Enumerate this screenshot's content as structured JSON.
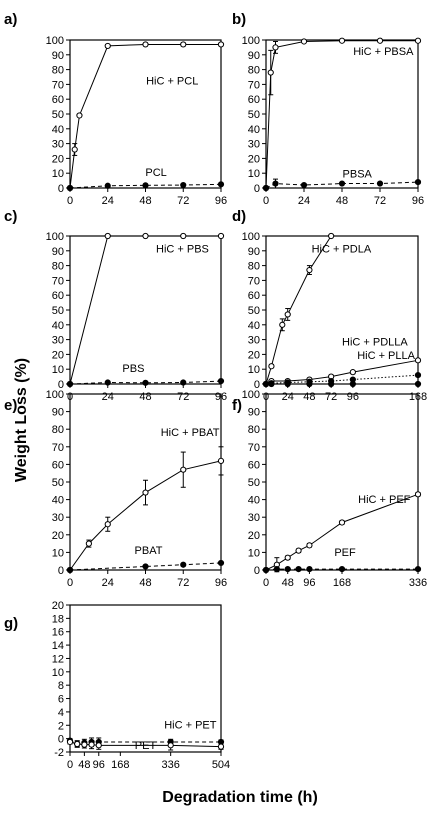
{
  "figure": {
    "ylabel": "Weight Loss (%)",
    "xlabel": "Degradation time (h)"
  },
  "chart_data": [
    {
      "panel": "a)",
      "type": "line",
      "xticks": [
        0,
        24,
        48,
        72,
        96
      ],
      "xlim": [
        0,
        96
      ],
      "yticks": [
        0,
        10,
        20,
        30,
        40,
        50,
        60,
        70,
        80,
        90,
        100
      ],
      "ylim": [
        0,
        100
      ],
      "series": [
        {
          "name": "HiC + PCL",
          "line": "solid",
          "marker": "open",
          "x": [
            0,
            3,
            6,
            24,
            48,
            72,
            96
          ],
          "y": [
            0,
            26,
            49,
            96,
            97,
            97,
            97
          ],
          "err": [
            0,
            4,
            1,
            1,
            1,
            1,
            1
          ]
        },
        {
          "name": "PCL",
          "line": "dashed",
          "marker": "filled",
          "x": [
            0,
            24,
            48,
            72,
            96
          ],
          "y": [
            0,
            1.5,
            1.8,
            2,
            2.5
          ],
          "err": [
            0,
            0.5,
            0.5,
            0.5,
            0.5
          ]
        }
      ]
    },
    {
      "panel": "b)",
      "type": "line",
      "xticks": [
        0,
        24,
        48,
        72,
        96
      ],
      "xlim": [
        0,
        96
      ],
      "yticks": [
        0,
        10,
        20,
        30,
        40,
        50,
        60,
        70,
        80,
        90,
        100
      ],
      "ylim": [
        0,
        100
      ],
      "series": [
        {
          "name": "HiC + PBSA",
          "line": "solid",
          "marker": "open",
          "x": [
            0,
            3,
            6,
            24,
            48,
            72,
            96
          ],
          "y": [
            0,
            78,
            95,
            99,
            99.5,
            99.5,
            99.5
          ],
          "err": [
            0,
            15,
            4,
            0.5,
            0.5,
            0.5,
            0.5
          ]
        },
        {
          "name": "PBSA",
          "line": "dashed",
          "marker": "filled",
          "x": [
            0,
            6,
            24,
            48,
            72,
            96
          ],
          "y": [
            0,
            3,
            2,
            3,
            3,
            4
          ],
          "err": [
            0,
            3,
            1,
            0.5,
            0.5,
            1
          ]
        }
      ]
    },
    {
      "panel": "c)",
      "type": "line",
      "xticks": [
        0,
        24,
        48,
        72,
        96
      ],
      "xlim": [
        0,
        96
      ],
      "yticks": [
        0,
        10,
        20,
        30,
        40,
        50,
        60,
        70,
        80,
        90,
        100
      ],
      "ylim": [
        0,
        100
      ],
      "series": [
        {
          "name": "HiC + PBS",
          "line": "solid",
          "marker": "open",
          "x": [
            0,
            24,
            48,
            72,
            96
          ],
          "y": [
            0,
            100,
            100,
            100,
            100
          ],
          "err": [
            0,
            0.5,
            0.5,
            0.5,
            0.5
          ]
        },
        {
          "name": "PBS",
          "line": "dashed",
          "marker": "filled",
          "x": [
            0,
            24,
            48,
            72,
            96
          ],
          "y": [
            0,
            1,
            0.8,
            1,
            2
          ],
          "err": [
            0,
            0.5,
            0.5,
            0.5,
            0.5
          ]
        }
      ]
    },
    {
      "panel": "d)",
      "type": "line",
      "xticks": [
        0,
        24,
        48,
        72,
        96,
        168
      ],
      "xlim": [
        0,
        168
      ],
      "yticks": [
        0,
        10,
        20,
        30,
        40,
        50,
        60,
        70,
        80,
        90,
        100
      ],
      "ylim": [
        0,
        100
      ],
      "series": [
        {
          "name": "HiC + PDLA",
          "line": "solid",
          "marker": "open",
          "x": [
            0,
            6,
            18,
            24,
            48,
            72
          ],
          "y": [
            0,
            12,
            40,
            47,
            77,
            100
          ],
          "err": [
            0,
            1,
            4,
            4,
            3,
            0
          ]
        },
        {
          "name": "HiC + PDLLA",
          "line": "solid",
          "marker": "open",
          "x": [
            0,
            6,
            24,
            48,
            72,
            96,
            168
          ],
          "y": [
            0,
            2,
            2,
            3,
            5,
            8,
            16
          ],
          "err": [
            0,
            1,
            1,
            1,
            1,
            1,
            1
          ]
        },
        {
          "name": "HiC + PLLA",
          "line": "dotted",
          "marker": "filled",
          "x": [
            0,
            6,
            24,
            48,
            72,
            96,
            168
          ],
          "y": [
            0,
            0.5,
            1,
            1.5,
            2,
            3,
            6
          ],
          "err": [
            0,
            0.5,
            0.5,
            0.5,
            0.5,
            0.5,
            1
          ]
        },
        {
          "name": "",
          "line": "dashed",
          "marker": "filled",
          "x": [
            0,
            6,
            24,
            48,
            72,
            96,
            168
          ],
          "y": [
            0,
            0,
            0,
            0,
            0,
            0,
            0
          ],
          "err": [
            0,
            0.5,
            0.5,
            0.5,
            0.5,
            0.5,
            0.5
          ]
        }
      ]
    },
    {
      "panel": "e)",
      "type": "line",
      "xticks": [
        0,
        24,
        48,
        72,
        96
      ],
      "xlim": [
        0,
        96
      ],
      "yticks": [
        0,
        10,
        20,
        30,
        40,
        50,
        60,
        70,
        80,
        90,
        100
      ],
      "ylim": [
        0,
        100
      ],
      "series": [
        {
          "name": "HiC + PBAT",
          "line": "solid",
          "marker": "open",
          "x": [
            0,
            12,
            24,
            48,
            72,
            96
          ],
          "y": [
            0,
            15,
            26,
            44,
            57,
            62
          ],
          "err": [
            0,
            2,
            4,
            7,
            10,
            8
          ]
        },
        {
          "name": "PBAT",
          "line": "dashed",
          "marker": "filled",
          "x": [
            0,
            48,
            72,
            96
          ],
          "y": [
            0,
            2,
            3,
            4
          ],
          "err": [
            0,
            0.5,
            0.5,
            0.5
          ]
        }
      ]
    },
    {
      "panel": "f)",
      "type": "line",
      "xticks": [
        0,
        48,
        96,
        168,
        336
      ],
      "xlim": [
        0,
        336
      ],
      "yticks": [
        0,
        10,
        20,
        30,
        40,
        50,
        60,
        70,
        80,
        90,
        100
      ],
      "ylim": [
        0,
        100
      ],
      "series": [
        {
          "name": "HiC + PEF",
          "line": "solid",
          "marker": "open",
          "x": [
            0,
            24,
            48,
            72,
            96,
            168,
            336
          ],
          "y": [
            0,
            3,
            7,
            11,
            14,
            27,
            43
          ],
          "err": [
            0,
            4,
            1,
            1,
            1,
            1,
            1
          ]
        },
        {
          "name": "PEF",
          "line": "dashed",
          "marker": "filled",
          "x": [
            0,
            24,
            48,
            72,
            96,
            168,
            336
          ],
          "y": [
            0,
            0.5,
            0.5,
            0.5,
            0.5,
            0.5,
            0.5
          ],
          "err": [
            0,
            0.5,
            0.5,
            0.5,
            0.5,
            0.5,
            0.5
          ]
        }
      ]
    },
    {
      "panel": "g)",
      "type": "line",
      "xticks": [
        0,
        48,
        96,
        168,
        336,
        504
      ],
      "xlim": [
        0,
        504
      ],
      "xticklabels": [
        "0",
        "48",
        "96",
        "168",
        "336",
        "504"
      ],
      "yticks": [
        -2,
        0,
        2,
        4,
        6,
        8,
        10,
        12,
        14,
        16,
        18,
        20
      ],
      "ylim": [
        -2,
        20
      ],
      "series": [
        {
          "name": "HiC + PET",
          "line": "dashed",
          "marker": "filled",
          "x": [
            0,
            24,
            48,
            72,
            96,
            336,
            504
          ],
          "y": [
            -0.3,
            -0.8,
            -0.6,
            -0.5,
            -0.5,
            -0.5,
            -0.5
          ],
          "err": [
            0.3,
            0.4,
            0.5,
            0.6,
            0.6,
            0.4,
            0.3
          ]
        },
        {
          "name": "PET",
          "line": "solid",
          "marker": "open",
          "x": [
            0,
            24,
            48,
            72,
            96,
            336,
            504
          ],
          "y": [
            -0.5,
            -0.8,
            -0.9,
            -0.9,
            -1,
            -1,
            -1.2
          ],
          "err": [
            0.3,
            0.5,
            0.5,
            0.6,
            0.6,
            0.7,
            0.4
          ]
        }
      ]
    }
  ]
}
